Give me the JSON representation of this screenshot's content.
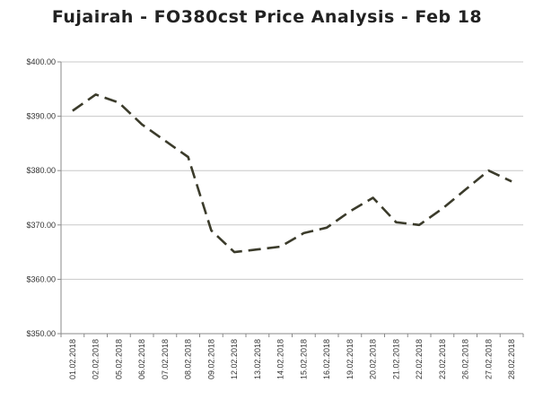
{
  "chart_data": {
    "type": "line",
    "title": "Fujairah - FO380cst Price Analysis - Feb 18",
    "xlabel": "",
    "ylabel": "",
    "ylim": [
      350,
      400
    ],
    "y_ticks": [
      "$350.00",
      "$360.00",
      "$370.00",
      "$380.00",
      "$390.00",
      "$400.00"
    ],
    "y_tick_values": [
      350,
      360,
      370,
      380,
      390,
      400
    ],
    "grid": "horizontal",
    "legend": "none",
    "line_color": "#3b3b2b",
    "line_style": "dashed",
    "categories": [
      "01.02.2018",
      "02.02.2018",
      "05.02.2018",
      "06.02.2018",
      "07.02.2018",
      "08.02.2018",
      "09.02.2018",
      "12.02.2018",
      "13.02.2018",
      "14.02.2018",
      "15.02.2018",
      "16.02.2018",
      "19.02.2018",
      "20.02.2018",
      "21.02.2018",
      "22.02.2018",
      "23.02.2018",
      "26.02.2018",
      "27.02.2018",
      "28.02.2018"
    ],
    "series": [
      {
        "values": [
          391,
          394,
          392.5,
          388.5,
          385.5,
          382.5,
          369,
          365,
          365.5,
          366,
          368.5,
          369.5,
          372.5,
          375,
          370.5,
          370,
          373,
          376.5,
          380,
          378
        ]
      }
    ]
  }
}
